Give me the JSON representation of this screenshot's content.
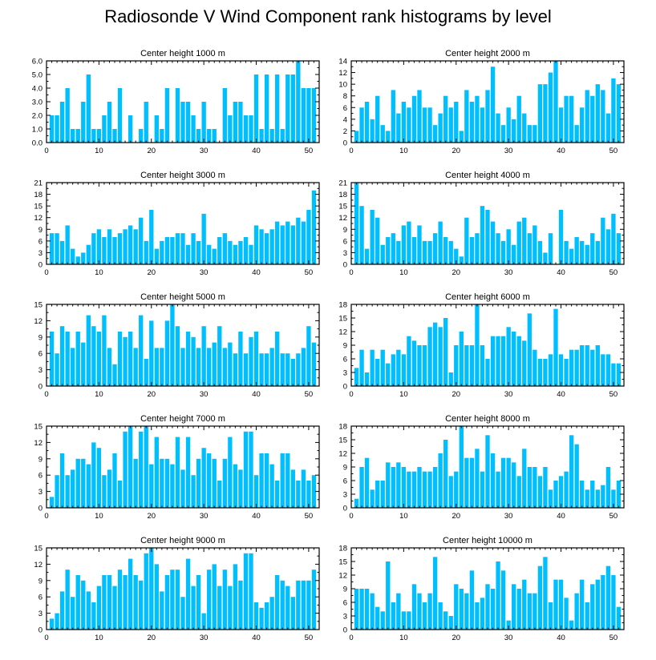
{
  "title": "Radiosonde V Wind Component rank histograms by level",
  "colors": {
    "bar": "#00BFFF",
    "bar_edge": "#ffffff",
    "axis": "#000000"
  },
  "chart_data": [
    {
      "type": "bar",
      "title": "Center height 1000 m",
      "xlim": [
        0,
        52
      ],
      "ylim": [
        0,
        6
      ],
      "yticks": [
        "0.0",
        "1.0",
        "2.0",
        "3.0",
        "4.0",
        "5.0",
        "6.0"
      ],
      "xticks": [
        0,
        10,
        20,
        30,
        40,
        50
      ],
      "x": [
        1,
        2,
        3,
        4,
        5,
        6,
        7,
        8,
        9,
        10,
        11,
        12,
        13,
        14,
        15,
        16,
        17,
        18,
        19,
        20,
        21,
        22,
        23,
        24,
        25,
        26,
        27,
        28,
        29,
        30,
        31,
        32,
        33,
        34,
        35,
        36,
        37,
        38,
        39,
        40,
        41,
        42,
        43,
        44,
        45,
        46,
        47,
        48,
        49,
        50,
        51
      ],
      "values": [
        2,
        2,
        3,
        4,
        1,
        1,
        3,
        5,
        1,
        1,
        2,
        3,
        1,
        4,
        0,
        2,
        0,
        1,
        3,
        0,
        2,
        1,
        4,
        0,
        4,
        3,
        3,
        2,
        1,
        3,
        1,
        1,
        0,
        4,
        2,
        3,
        3,
        2,
        2,
        5,
        1,
        5,
        1,
        5,
        1,
        5,
        5,
        6,
        4,
        4,
        4
      ]
    },
    {
      "type": "bar",
      "title": "Center height 2000 m",
      "xlim": [
        0,
        52
      ],
      "ylim": [
        0,
        14
      ],
      "yticks": [
        "0",
        "2",
        "4",
        "6",
        "8",
        "10",
        "12",
        "14"
      ],
      "xticks": [
        0,
        10,
        20,
        30,
        40,
        50
      ],
      "x": [
        1,
        2,
        3,
        4,
        5,
        6,
        7,
        8,
        9,
        10,
        11,
        12,
        13,
        14,
        15,
        16,
        17,
        18,
        19,
        20,
        21,
        22,
        23,
        24,
        25,
        26,
        27,
        28,
        29,
        30,
        31,
        32,
        33,
        34,
        35,
        36,
        37,
        38,
        39,
        40,
        41,
        42,
        43,
        44,
        45,
        46,
        47,
        48,
        49,
        50,
        51
      ],
      "values": [
        2,
        6,
        7,
        4,
        8,
        3,
        2,
        9,
        5,
        7,
        6,
        8,
        9,
        6,
        6,
        3,
        5,
        8,
        6,
        7,
        2,
        9,
        7,
        8,
        6,
        9,
        13,
        5,
        3,
        6,
        4,
        8,
        5,
        3,
        3,
        10,
        10,
        12,
        14,
        6,
        8,
        8,
        3,
        6,
        9,
        8,
        10,
        9,
        5,
        11,
        10
      ]
    },
    {
      "type": "bar",
      "title": "Center height 3000 m",
      "xlim": [
        0,
        52
      ],
      "ylim": [
        0,
        21
      ],
      "yticks": [
        "0",
        "3",
        "6",
        "9",
        "12",
        "15",
        "18",
        "21"
      ],
      "xticks": [
        0,
        10,
        20,
        30,
        40,
        50
      ],
      "x": [
        1,
        2,
        3,
        4,
        5,
        6,
        7,
        8,
        9,
        10,
        11,
        12,
        13,
        14,
        15,
        16,
        17,
        18,
        19,
        20,
        21,
        22,
        23,
        24,
        25,
        26,
        27,
        28,
        29,
        30,
        31,
        32,
        33,
        34,
        35,
        36,
        37,
        38,
        39,
        40,
        41,
        42,
        43,
        44,
        45,
        46,
        47,
        48,
        49,
        50,
        51
      ],
      "values": [
        8,
        8,
        6,
        10,
        4,
        2,
        3,
        5,
        8,
        9,
        7,
        9,
        7,
        8,
        9,
        10,
        9,
        12,
        6,
        14,
        4,
        6,
        7,
        7,
        8,
        8,
        5,
        8,
        6,
        13,
        5,
        4,
        7,
        8,
        6,
        5,
        6,
        7,
        5,
        10,
        9,
        8,
        9,
        11,
        10,
        11,
        10,
        12,
        11,
        14,
        19
      ]
    },
    {
      "type": "bar",
      "title": "Center height 4000 m",
      "xlim": [
        0,
        52
      ],
      "ylim": [
        0,
        21
      ],
      "yticks": [
        "0",
        "3",
        "6",
        "9",
        "12",
        "15",
        "18",
        "21"
      ],
      "xticks": [
        0,
        10,
        20,
        30,
        40,
        50
      ],
      "x": [
        1,
        2,
        3,
        4,
        5,
        6,
        7,
        8,
        9,
        10,
        11,
        12,
        13,
        14,
        15,
        16,
        17,
        18,
        19,
        20,
        21,
        22,
        23,
        24,
        25,
        26,
        27,
        28,
        29,
        30,
        31,
        32,
        33,
        34,
        35,
        36,
        37,
        38,
        39,
        40,
        41,
        42,
        43,
        44,
        45,
        46,
        47,
        48,
        49,
        50,
        51
      ],
      "values": [
        21,
        15,
        4,
        14,
        12,
        5,
        7,
        8,
        6,
        10,
        11,
        7,
        10,
        6,
        6,
        8,
        11,
        7,
        6,
        4,
        2,
        12,
        7,
        8,
        15,
        14,
        11,
        8,
        6,
        9,
        5,
        11,
        12,
        8,
        10,
        6,
        3,
        8,
        0,
        14,
        6,
        4,
        7,
        6,
        5,
        8,
        6,
        12,
        9,
        13,
        8
      ]
    },
    {
      "type": "bar",
      "title": "Center height 5000 m",
      "xlim": [
        0,
        52
      ],
      "ylim": [
        0,
        15
      ],
      "yticks": [
        "0",
        "3",
        "6",
        "9",
        "12",
        "15"
      ],
      "xticks": [
        0,
        10,
        20,
        30,
        40,
        50
      ],
      "x": [
        1,
        2,
        3,
        4,
        5,
        6,
        7,
        8,
        9,
        10,
        11,
        12,
        13,
        14,
        15,
        16,
        17,
        18,
        19,
        20,
        21,
        22,
        23,
        24,
        25,
        26,
        27,
        28,
        29,
        30,
        31,
        32,
        33,
        34,
        35,
        36,
        37,
        38,
        39,
        40,
        41,
        42,
        43,
        44,
        45,
        46,
        47,
        48,
        49,
        50,
        51
      ],
      "values": [
        10,
        6,
        11,
        10,
        7,
        10,
        8,
        13,
        11,
        10,
        13,
        7,
        4,
        10,
        9,
        10,
        7,
        13,
        5,
        12,
        7,
        7,
        12,
        15,
        11,
        7,
        10,
        9,
        7,
        11,
        7,
        8,
        11,
        7,
        8,
        6,
        10,
        6,
        9,
        10,
        6,
        6,
        7,
        10,
        6,
        6,
        5,
        6,
        7,
        11,
        8
      ]
    },
    {
      "type": "bar",
      "title": "Center height 6000 m",
      "xlim": [
        0,
        52
      ],
      "ylim": [
        0,
        18
      ],
      "yticks": [
        "0",
        "3",
        "6",
        "9",
        "12",
        "15",
        "18"
      ],
      "xticks": [
        0,
        10,
        20,
        30,
        40,
        50
      ],
      "x": [
        1,
        2,
        3,
        4,
        5,
        6,
        7,
        8,
        9,
        10,
        11,
        12,
        13,
        14,
        15,
        16,
        17,
        18,
        19,
        20,
        21,
        22,
        23,
        24,
        25,
        26,
        27,
        28,
        29,
        30,
        31,
        32,
        33,
        34,
        35,
        36,
        37,
        38,
        39,
        40,
        41,
        42,
        43,
        44,
        45,
        46,
        47,
        48,
        49,
        50,
        51
      ],
      "values": [
        4,
        8,
        3,
        8,
        6,
        8,
        5,
        7,
        8,
        7,
        11,
        10,
        9,
        9,
        13,
        14,
        13,
        15,
        3,
        9,
        12,
        9,
        9,
        18,
        9,
        6,
        11,
        11,
        11,
        13,
        12,
        11,
        10,
        16,
        8,
        6,
        6,
        7,
        17,
        7,
        6,
        8,
        8,
        9,
        9,
        8,
        9,
        7,
        7,
        5,
        5
      ]
    },
    {
      "type": "bar",
      "title": "Center height 7000 m",
      "xlim": [
        0,
        52
      ],
      "ylim": [
        0,
        15
      ],
      "yticks": [
        "0",
        "3",
        "6",
        "9",
        "12",
        "15"
      ],
      "xticks": [
        0,
        10,
        20,
        30,
        40,
        50
      ],
      "x": [
        1,
        2,
        3,
        4,
        5,
        6,
        7,
        8,
        9,
        10,
        11,
        12,
        13,
        14,
        15,
        16,
        17,
        18,
        19,
        20,
        21,
        22,
        23,
        24,
        25,
        26,
        27,
        28,
        29,
        30,
        31,
        32,
        33,
        34,
        35,
        36,
        37,
        38,
        39,
        40,
        41,
        42,
        43,
        44,
        45,
        46,
        47,
        48,
        49,
        50,
        51
      ],
      "values": [
        2,
        6,
        10,
        6,
        7,
        9,
        9,
        8,
        12,
        11,
        6,
        7,
        10,
        5,
        14,
        15,
        9,
        14,
        15,
        8,
        13,
        9,
        9,
        8,
        13,
        7,
        13,
        6,
        9,
        11,
        10,
        9,
        5,
        9,
        13,
        8,
        7,
        14,
        14,
        6,
        10,
        10,
        8,
        5,
        10,
        10,
        7,
        5,
        7,
        5,
        6
      ]
    },
    {
      "type": "bar",
      "title": "Center height 8000 m",
      "xlim": [
        0,
        52
      ],
      "ylim": [
        0,
        18
      ],
      "yticks": [
        "0",
        "3",
        "6",
        "9",
        "12",
        "15",
        "18"
      ],
      "xticks": [
        0,
        10,
        20,
        30,
        40,
        50
      ],
      "x": [
        1,
        2,
        3,
        4,
        5,
        6,
        7,
        8,
        9,
        10,
        11,
        12,
        13,
        14,
        15,
        16,
        17,
        18,
        19,
        20,
        21,
        22,
        23,
        24,
        25,
        26,
        27,
        28,
        29,
        30,
        31,
        32,
        33,
        34,
        35,
        36,
        37,
        38,
        39,
        40,
        41,
        42,
        43,
        44,
        45,
        46,
        47,
        48,
        49,
        50,
        51
      ],
      "values": [
        2,
        9,
        11,
        4,
        6,
        6,
        10,
        9,
        10,
        9,
        8,
        8,
        9,
        8,
        8,
        9,
        12,
        15,
        7,
        8,
        18,
        11,
        11,
        13,
        8,
        16,
        12,
        8,
        11,
        11,
        10,
        7,
        13,
        9,
        9,
        7,
        9,
        4,
        6,
        7,
        8,
        16,
        14,
        6,
        4,
        6,
        4,
        5,
        9,
        4,
        6
      ]
    },
    {
      "type": "bar",
      "title": "Center height 9000 m",
      "xlim": [
        0,
        52
      ],
      "ylim": [
        0,
        15
      ],
      "yticks": [
        "0",
        "3",
        "6",
        "9",
        "12",
        "15"
      ],
      "xticks": [
        0,
        10,
        20,
        30,
        40,
        50
      ],
      "x": [
        1,
        2,
        3,
        4,
        5,
        6,
        7,
        8,
        9,
        10,
        11,
        12,
        13,
        14,
        15,
        16,
        17,
        18,
        19,
        20,
        21,
        22,
        23,
        24,
        25,
        26,
        27,
        28,
        29,
        30,
        31,
        32,
        33,
        34,
        35,
        36,
        37,
        38,
        39,
        40,
        41,
        42,
        43,
        44,
        45,
        46,
        47,
        48,
        49,
        50,
        51
      ],
      "values": [
        2,
        3,
        7,
        11,
        6,
        10,
        9,
        7,
        5,
        8,
        10,
        10,
        8,
        11,
        10,
        13,
        10,
        9,
        14,
        15,
        12,
        7,
        10,
        11,
        11,
        6,
        13,
        8,
        10,
        3,
        11,
        12,
        8,
        11,
        8,
        12,
        9,
        14,
        14,
        5,
        4,
        5,
        6,
        10,
        9,
        8,
        6,
        9,
        9,
        9,
        11
      ]
    },
    {
      "type": "bar",
      "title": "Center height 10000 m",
      "xlim": [
        0,
        52
      ],
      "ylim": [
        0,
        18
      ],
      "yticks": [
        "0",
        "3",
        "6",
        "9",
        "12",
        "15",
        "18"
      ],
      "xticks": [
        0,
        10,
        20,
        30,
        40,
        50
      ],
      "x": [
        1,
        2,
        3,
        4,
        5,
        6,
        7,
        8,
        9,
        10,
        11,
        12,
        13,
        14,
        15,
        16,
        17,
        18,
        19,
        20,
        21,
        22,
        23,
        24,
        25,
        26,
        27,
        28,
        29,
        30,
        31,
        32,
        33,
        34,
        35,
        36,
        37,
        38,
        39,
        40,
        41,
        42,
        43,
        44,
        45,
        46,
        47,
        48,
        49,
        50,
        51
      ],
      "values": [
        9,
        9,
        9,
        8,
        5,
        4,
        15,
        6,
        8,
        4,
        4,
        10,
        8,
        6,
        8,
        16,
        6,
        4,
        3,
        10,
        9,
        8,
        13,
        6,
        7,
        10,
        9,
        15,
        13,
        2,
        10,
        9,
        11,
        8,
        8,
        14,
        16,
        6,
        11,
        11,
        7,
        2,
        8,
        11,
        6,
        10,
        11,
        12,
        14,
        12,
        5
      ]
    }
  ]
}
